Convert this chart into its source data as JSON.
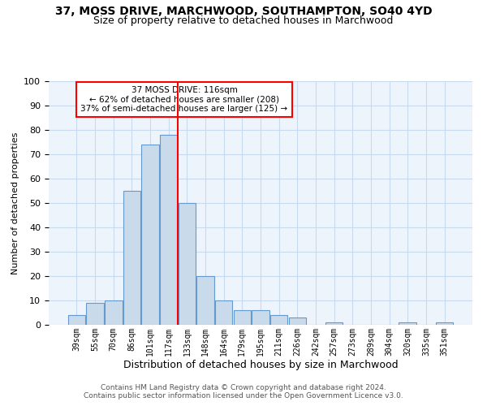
{
  "title1": "37, MOSS DRIVE, MARCHWOOD, SOUTHAMPTON, SO40 4YD",
  "title2": "Size of property relative to detached houses in Marchwood",
  "xlabel": "Distribution of detached houses by size in Marchwood",
  "ylabel": "Number of detached properties",
  "bar_labels": [
    "39sqm",
    "55sqm",
    "70sqm",
    "86sqm",
    "101sqm",
    "117sqm",
    "133sqm",
    "148sqm",
    "164sqm",
    "179sqm",
    "195sqm",
    "211sqm",
    "226sqm",
    "242sqm",
    "257sqm",
    "273sqm",
    "289sqm",
    "304sqm",
    "320sqm",
    "335sqm",
    "351sqm"
  ],
  "bar_values": [
    4,
    9,
    10,
    55,
    74,
    78,
    50,
    20,
    10,
    6,
    6,
    4,
    3,
    0,
    1,
    0,
    0,
    0,
    1,
    0,
    1
  ],
  "bar_color": "#c9daea",
  "bar_edge_color": "#6699cc",
  "red_line_index": 5,
  "annotation_line1": "37 MOSS DRIVE: 116sqm",
  "annotation_line2": "← 62% of detached houses are smaller (208)",
  "annotation_line3": "37% of semi-detached houses are larger (125) →",
  "ylim": [
    0,
    100
  ],
  "yticks": [
    0,
    10,
    20,
    30,
    40,
    50,
    60,
    70,
    80,
    90,
    100
  ],
  "footer1": "Contains HM Land Registry data © Crown copyright and database right 2024.",
  "footer2": "Contains public sector information licensed under the Open Government Licence v3.0.",
  "title_fontsize": 10,
  "subtitle_fontsize": 9
}
